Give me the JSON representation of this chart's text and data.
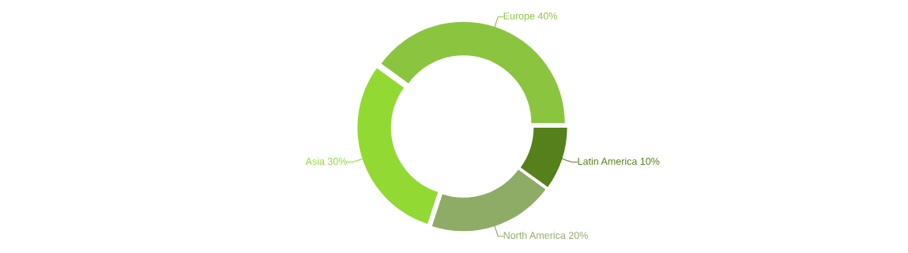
{
  "chart_data": {
    "type": "donut",
    "categories": [
      "Europe",
      "Asia",
      "North America",
      "Latin America"
    ],
    "values": [
      40,
      30,
      20,
      10
    ],
    "value_labels": [
      "40%",
      "30%",
      "20%",
      "10%"
    ],
    "colors": [
      "#8bc540",
      "#92d934",
      "#8fac66",
      "#55801b"
    ],
    "legend": false
  }
}
